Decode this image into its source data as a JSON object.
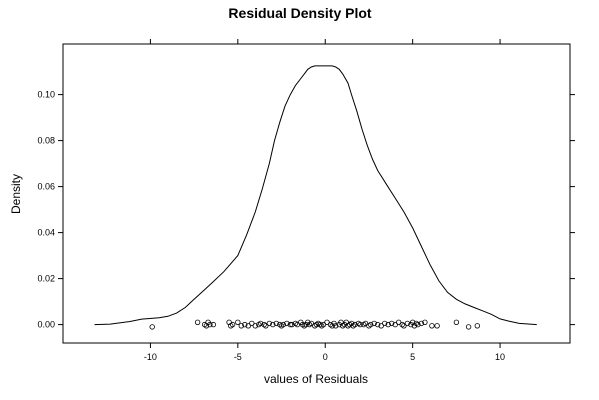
{
  "chart_data": {
    "type": "area",
    "title": "Residual Density Plot",
    "xlabel": "values of Residuals",
    "ylabel": "Density",
    "xlim": [
      -15,
      14
    ],
    "ylim": [
      -0.008,
      0.122
    ],
    "x_ticks": [
      -10,
      -5,
      0,
      5,
      10
    ],
    "x_tick_labels": [
      "-10",
      "-5",
      "0",
      "5",
      "10"
    ],
    "y_ticks": [
      0.0,
      0.02,
      0.04,
      0.06,
      0.08,
      0.1
    ],
    "y_tick_labels": [
      "0.00",
      "0.02",
      "0.04",
      "0.06",
      "0.08",
      "0.10"
    ],
    "grid": false,
    "series": [
      {
        "kind": "density",
        "x": [
          -13.2,
          -12.3,
          -11.2,
          -10.5,
          -9.5,
          -9.0,
          -8.5,
          -8.0,
          -7.5,
          -7.0,
          -6.5,
          -5.8,
          -5.0,
          -4.5,
          -4.0,
          -3.6,
          -3.2,
          -2.9,
          -2.6,
          -2.3,
          -2.0,
          -1.7,
          -1.4,
          -1.2,
          -1.0,
          -0.8,
          -0.6,
          -0.4,
          -0.2,
          0.0,
          0.2,
          0.4,
          0.6,
          0.8,
          1.0,
          1.3,
          1.5,
          1.8,
          2.1,
          2.4,
          2.7,
          3.0,
          3.5,
          4.0,
          4.5,
          5.0,
          5.5,
          6.0,
          6.5,
          7.0,
          7.5,
          8.0,
          8.5,
          9.0,
          9.5,
          10.0,
          10.5,
          11.1,
          12.1
        ],
        "y": [
          0.0,
          0.0002,
          0.0013,
          0.0024,
          0.003,
          0.0036,
          0.005,
          0.0075,
          0.011,
          0.0145,
          0.018,
          0.023,
          0.03,
          0.039,
          0.049,
          0.059,
          0.07,
          0.08,
          0.088,
          0.095,
          0.1,
          0.104,
          0.107,
          0.109,
          0.111,
          0.112,
          0.1125,
          0.1125,
          0.1125,
          0.1125,
          0.1125,
          0.1125,
          0.112,
          0.111,
          0.109,
          0.105,
          0.1,
          0.093,
          0.085,
          0.078,
          0.072,
          0.067,
          0.061,
          0.055,
          0.049,
          0.042,
          0.034,
          0.026,
          0.019,
          0.014,
          0.011,
          0.009,
          0.0075,
          0.006,
          0.0045,
          0.0025,
          0.0015,
          0.0005,
          0.0
        ]
      },
      {
        "kind": "rug",
        "x": [
          -9.9,
          -7.3,
          -6.9,
          -6.8,
          -6.7,
          -6.6,
          -6.4,
          -5.5,
          -5.4,
          -5.3,
          -5.0,
          -4.8,
          -4.6,
          -4.4,
          -4.2,
          -4.0,
          -3.8,
          -3.7,
          -3.5,
          -3.4,
          -3.2,
          -3.0,
          -2.8,
          -2.6,
          -2.5,
          -2.4,
          -2.2,
          -2.0,
          -1.9,
          -1.7,
          -1.6,
          -1.4,
          -1.3,
          -1.2,
          -1.1,
          -1.0,
          -0.9,
          -0.8,
          -0.6,
          -0.5,
          -0.4,
          -0.3,
          -0.2,
          -0.1,
          0.1,
          0.3,
          0.4,
          0.5,
          0.6,
          0.8,
          0.9,
          1.0,
          1.1,
          1.2,
          1.3,
          1.4,
          1.5,
          1.6,
          1.7,
          1.9,
          2.0,
          2.2,
          2.3,
          2.5,
          2.6,
          2.8,
          3.0,
          3.2,
          3.4,
          3.6,
          3.8,
          4.0,
          4.2,
          4.4,
          4.5,
          4.7,
          4.9,
          5.0,
          5.1,
          5.2,
          5.3,
          5.5,
          5.7,
          6.1,
          6.4,
          7.5,
          8.2,
          8.7
        ],
        "y": [
          -0.001,
          0.001,
          0.0,
          -0.0005,
          0.001,
          0.0,
          0.0,
          0.001,
          -0.0005,
          0.0,
          0.001,
          -0.0005,
          0.0,
          -0.0005,
          0.0005,
          -0.0005,
          0.0,
          0.0005,
          0.0,
          -0.0005,
          0.0005,
          0.0,
          0.0005,
          0.0,
          -0.0005,
          0.0,
          0.0005,
          0.0,
          0.0,
          0.0005,
          0.0,
          0.001,
          0.0,
          -0.0005,
          0.0,
          0.001,
          0.0,
          0.0005,
          -0.0005,
          0.0,
          0.0005,
          0.0,
          -0.0005,
          0.0,
          0.001,
          0.0,
          -0.0005,
          0.0005,
          -0.0005,
          0.0,
          0.001,
          -0.0005,
          0.0,
          0.001,
          -0.0005,
          0.0,
          0.0005,
          -0.0005,
          0.0,
          0.0005,
          0.0,
          0.0,
          0.0005,
          -0.0005,
          0.0,
          0.0005,
          0.0,
          -0.0005,
          0.0005,
          0.0,
          0.0005,
          0.0,
          0.001,
          0.0,
          -0.0005,
          0.0005,
          0.0,
          0.001,
          -0.0005,
          0.0005,
          0.0,
          0.0005,
          0.001,
          -0.0005,
          -0.0005,
          0.001,
          -0.001,
          -0.0005
        ]
      }
    ]
  }
}
